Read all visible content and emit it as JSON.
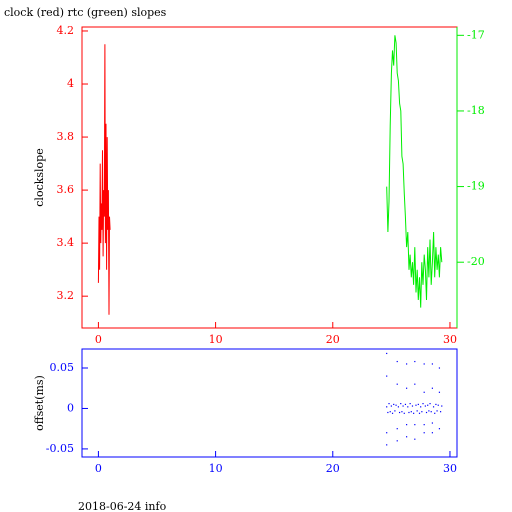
{
  "chart_data": [
    {
      "type": "line",
      "title": "clock (red) rtc (green) slopes",
      "y_label": "clockslope",
      "xlim": [
        -1.4,
        30.6
      ],
      "ylim": [
        3.08,
        4.215
      ],
      "y2lim": [
        -20.87,
        -16.89
      ],
      "xticks": [
        0,
        10,
        20,
        30
      ],
      "yticks": [
        3.2,
        3.4,
        3.6,
        3.8,
        4,
        4.2
      ],
      "y2ticks": [
        -20,
        -19,
        -18,
        -17
      ],
      "series": [
        {
          "color": "#ff0000",
          "x": [
            0.0,
            0.05,
            0.1,
            0.15,
            0.2,
            0.25,
            0.3,
            0.35,
            0.4,
            0.45,
            0.5,
            0.55,
            0.6,
            0.65,
            0.7,
            0.75,
            0.8,
            0.85,
            0.9,
            0.95,
            1.0
          ],
          "values": [
            3.25,
            3.5,
            3.3,
            3.7,
            3.4,
            3.55,
            3.45,
            3.75,
            3.35,
            3.6,
            3.5,
            4.15,
            3.4,
            3.85,
            3.3,
            3.8,
            3.45,
            3.6,
            3.13,
            3.5,
            3.45
          ]
        },
        {
          "color": "#00ee00",
          "axis": "y2",
          "x": [
            24.6,
            24.7,
            24.8,
            24.9,
            25.0,
            25.1,
            25.2,
            25.3,
            25.4,
            25.5,
            25.6,
            25.7,
            25.8,
            25.9,
            26.0,
            26.1,
            26.2,
            26.3,
            26.4,
            26.5,
            26.6,
            26.7,
            26.8,
            26.9,
            27.0,
            27.1,
            27.2,
            27.3,
            27.4,
            27.5,
            27.6,
            27.7,
            27.8,
            27.9,
            28.0,
            28.1,
            28.2,
            28.3,
            28.4,
            28.5,
            28.6,
            28.7,
            28.8,
            28.9,
            29.0,
            29.1,
            29.2,
            29.3
          ],
          "values": [
            -19.0,
            -19.6,
            -19.2,
            -18.2,
            -17.5,
            -17.2,
            -17.4,
            -17.0,
            -17.1,
            -17.5,
            -17.6,
            -17.9,
            -18.0,
            -18.6,
            -18.7,
            -19.1,
            -19.4,
            -19.8,
            -19.6,
            -20.1,
            -19.9,
            -20.2,
            -20.0,
            -20.3,
            -19.8,
            -20.4,
            -20.1,
            -20.5,
            -20.2,
            -20.6,
            -20.0,
            -20.3,
            -19.9,
            -20.1,
            -20.5,
            -19.8,
            -20.2,
            -19.7,
            -20.3,
            -20.0,
            -19.6,
            -20.2,
            -19.8,
            -20.1,
            -19.9,
            -20.2,
            -19.8,
            -20.0
          ]
        }
      ]
    },
    {
      "type": "scatter",
      "y_label": "offset(ms)",
      "xlim": [
        -1.4,
        30.6
      ],
      "ylim": [
        -0.06,
        0.0735
      ],
      "xticks": [
        0,
        10,
        20,
        30
      ],
      "yticks": [
        -0.05,
        0,
        0.05
      ],
      "series": [
        {
          "color": "#0000ff",
          "x": [
            24.6,
            24.6,
            24.6,
            24.6,
            24.6,
            24.7,
            24.8,
            24.9,
            25.0,
            25.1,
            25.2,
            25.3,
            25.4,
            25.5,
            25.5,
            25.5,
            25.5,
            25.6,
            25.7,
            25.8,
            25.9,
            26.0,
            26.1,
            26.2,
            26.3,
            26.3,
            26.3,
            26.3,
            26.4,
            26.5,
            26.6,
            26.7,
            26.8,
            26.9,
            27.0,
            27.0,
            27.0,
            27.0,
            27.1,
            27.2,
            27.3,
            27.4,
            27.5,
            27.6,
            27.7,
            27.8,
            27.8,
            27.8,
            27.8,
            27.9,
            28.0,
            28.1,
            28.2,
            28.3,
            28.4,
            28.5,
            28.5,
            28.5,
            28.5,
            28.6,
            28.7,
            28.8,
            28.9,
            29.0,
            29.1,
            29.1,
            29.1,
            29.2,
            29.3
          ],
          "values": [
            0.068,
            0.04,
            -0.03,
            -0.045,
            0.002,
            -0.005,
            0.006,
            -0.004,
            0.003,
            -0.006,
            0.005,
            -0.003,
            0.004,
            0.058,
            0.03,
            -0.025,
            -0.04,
            0.002,
            -0.005,
            0.006,
            -0.004,
            0.003,
            -0.006,
            0.005,
            0.055,
            0.025,
            -0.02,
            -0.035,
            0.002,
            -0.005,
            0.006,
            -0.004,
            0.003,
            -0.006,
            0.058,
            0.03,
            -0.02,
            -0.038,
            0.004,
            -0.003,
            0.005,
            -0.006,
            0.002,
            -0.004,
            0.006,
            0.055,
            0.02,
            -0.02,
            -0.03,
            0.003,
            -0.005,
            0.004,
            -0.003,
            0.006,
            -0.004,
            0.055,
            0.025,
            -0.018,
            -0.03,
            0.002,
            -0.006,
            0.005,
            -0.003,
            0.004,
            0.05,
            0.02,
            -0.025,
            -0.004,
            0.003
          ]
        }
      ]
    }
  ],
  "footer": "2018-06-24 info"
}
